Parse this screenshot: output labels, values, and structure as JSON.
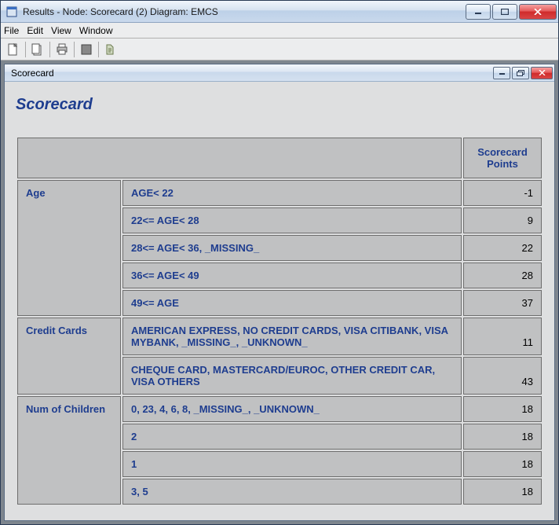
{
  "window": {
    "title": "Results - Node: Scorecard (2)  Diagram: EMCS"
  },
  "menubar": {
    "items": [
      "File",
      "Edit",
      "View",
      "Window"
    ]
  },
  "inner": {
    "title": "Scorecard"
  },
  "page": {
    "heading": "Scorecard",
    "points_header": "Scorecard Points"
  },
  "table": {
    "groups": [
      {
        "variable": "Age",
        "rows": [
          {
            "bin": "AGE< 22",
            "points": "-1"
          },
          {
            "bin": "22<= AGE< 28",
            "points": "9"
          },
          {
            "bin": "28<= AGE< 36, _MISSING_",
            "points": "22"
          },
          {
            "bin": "36<= AGE< 49",
            "points": "28"
          },
          {
            "bin": "49<= AGE",
            "points": "37"
          }
        ]
      },
      {
        "variable": "Credit Cards",
        "rows": [
          {
            "bin": "AMERICAN EXPRESS, NO CREDIT CARDS, VISA CITIBANK, VISA MYBANK, _MISSING_, _UNKNOWN_",
            "points": "11"
          },
          {
            "bin": "CHEQUE CARD, MASTERCARD/EUROC, OTHER CREDIT CAR, VISA OTHERS",
            "points": "43"
          }
        ]
      },
      {
        "variable": "Num of Children",
        "rows": [
          {
            "bin": "0, 23, 4, 6, 8, _MISSING_, _UNKNOWN_",
            "points": "18"
          },
          {
            "bin": "2",
            "points": "18"
          },
          {
            "bin": "1",
            "points": "18"
          },
          {
            "bin": "3, 5",
            "points": "18"
          }
        ]
      }
    ]
  }
}
